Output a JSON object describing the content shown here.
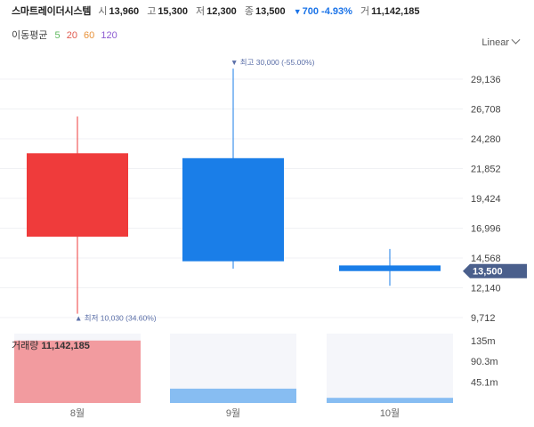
{
  "header": {
    "stock_name": "스마트레이더시스템",
    "open_label": "시",
    "open_value": "13,960",
    "high_label": "고",
    "high_value": "15,300",
    "low_label": "저",
    "low_value": "12,300",
    "close_label": "종",
    "close_value": "13,500",
    "change_text": "700 -4.93%",
    "volume_label": "거",
    "volume_value": "11,142,185"
  },
  "moving_average": {
    "label": "이동평균",
    "periods": [
      {
        "value": "5",
        "color": "#5fb85f"
      },
      {
        "value": "20",
        "color": "#e05a4f"
      },
      {
        "value": "60",
        "color": "#e8923a"
      },
      {
        "value": "120",
        "color": "#8c5bd1"
      }
    ]
  },
  "scale_toggle": {
    "label": "Linear"
  },
  "colors": {
    "up": "#ef3b3b",
    "down": "#1a7ee8",
    "up_volume": "#f29b9f",
    "down_volume": "#87bdf2",
    "price_tag": "#4a5f8c"
  },
  "chart_data": {
    "type": "candlestick",
    "categories": [
      "8월",
      "9월",
      "10월"
    ],
    "candles": [
      {
        "open": 16300,
        "high": 26100,
        "low": 10030,
        "close": 23100,
        "direction": "up"
      },
      {
        "open": 22700,
        "high": 30000,
        "low": 13700,
        "close": 14300,
        "direction": "down"
      },
      {
        "open": 13960,
        "high": 15300,
        "low": 12300,
        "close": 13500,
        "direction": "down"
      }
    ],
    "price_axis_ticks": [
      "29,136",
      "26,708",
      "24,280",
      "21,852",
      "19,424",
      "16,996",
      "14,568",
      "12,140",
      "9,712"
    ],
    "price_axis_values": [
      29136,
      26708,
      24280,
      21852,
      19424,
      16996,
      14568,
      12140,
      9712
    ],
    "current_price_label": "13,500",
    "current_price": 13500,
    "annotations": {
      "max": {
        "text": "최고 30,000 (-55.00%)",
        "value": 30000,
        "category_index": 1
      },
      "min": {
        "text": "최저 10,030 (34.60%)",
        "value": 10030,
        "category_index": 0
      }
    },
    "volume_title": "거래량",
    "volume_value_text": "11,142,185",
    "volume_values": [
      135000000,
      31000000,
      11142185
    ],
    "volume_axis_ticks": [
      "135m",
      "90.3m",
      "45.1m"
    ],
    "volume_axis_values": [
      135000000,
      90300000,
      45100000
    ],
    "volume_max": 150000000,
    "price_range": [
      8500,
      31800
    ]
  }
}
